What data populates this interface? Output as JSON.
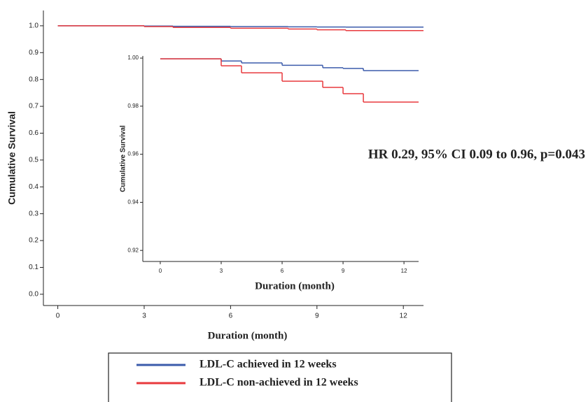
{
  "chart_data": [
    {
      "type": "step",
      "xlabel": "Duration (month)",
      "ylabel": "Cumulative Survival",
      "x": [
        0,
        3,
        4,
        6,
        8,
        9,
        10
      ],
      "series": [
        {
          "name": "LDL-C achieved in 12 weeks",
          "color": "#3b5bab",
          "values": [
            1.0,
            0.999,
            0.998,
            0.997,
            0.996,
            0.9955,
            0.995
          ]
        },
        {
          "name": "LDL-C non-achieved in 12 weeks",
          "color": "#e8393d",
          "values": [
            1.0,
            0.997,
            0.994,
            0.991,
            0.988,
            0.985,
            0.982
          ]
        }
      ],
      "xlim": [
        -0.5,
        12.7
      ],
      "xticks": [
        0,
        3,
        6,
        9,
        12
      ],
      "ylim": [
        -0.042,
        1.057
      ],
      "yticks": [
        {
          "value": 0,
          "label": "0.0"
        },
        0.1,
        0.2,
        0.3,
        0.4,
        0.5,
        0.6,
        0.7,
        0.8,
        0.9,
        {
          "value": 1,
          "label": "1.0"
        }
      ],
      "annotation": "HR 0.29, 95% CI 0.09 to 0.96, p=0.043"
    },
    {
      "type": "step",
      "xlabel": "Duration (month)",
      "ylabel": "Cumulative Survival",
      "x": [
        0,
        3,
        4,
        6,
        8,
        9,
        10
      ],
      "series": [
        {
          "color": "#3b5bab",
          "values": [
            0.9997,
            0.9988,
            0.998,
            0.997,
            0.996,
            0.9957,
            0.9948
          ]
        },
        {
          "color": "#e8393d",
          "values": [
            0.9997,
            0.9968,
            0.9939,
            0.9904,
            0.9878,
            0.9852,
            0.9817
          ]
        }
      ],
      "xlim": [
        -0.86,
        12.72
      ],
      "xticks": [
        0,
        3,
        6,
        9,
        12
      ],
      "ylim": [
        0.9154,
        1.0009
      ],
      "yticks": [
        0.92,
        0.94,
        0.96,
        0.98,
        {
          "value": 1,
          "label": "1.00"
        }
      ]
    }
  ]
}
